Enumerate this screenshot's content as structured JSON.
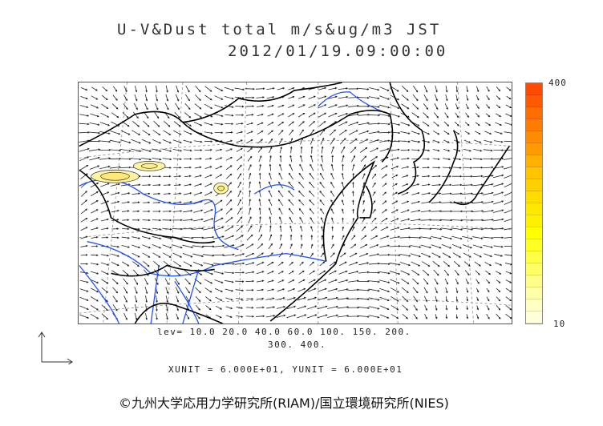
{
  "title": {
    "line1": "U-V&Dust total m/s&ug/m3 JST",
    "line2": "2012/01/19.09:00:00"
  },
  "colorbar": {
    "max_label": "400",
    "min_label": "10",
    "colors": [
      "#ff4a00",
      "#ff5a00",
      "#ff6c00",
      "#ff7c00",
      "#ff8c00",
      "#ff9a00",
      "#ffb000",
      "#ffc400",
      "#ffd000",
      "#ffdc00",
      "#ffe800",
      "#fff000",
      "#ffff00",
      "#ffff22",
      "#ffff44",
      "#ffff66",
      "#ffff88",
      "#ffffaa",
      "#ffffc4",
      "#ffffdc"
    ]
  },
  "contour_levels": {
    "line1": "lev= 10.0 20.0 40.0 60.0 100. 150. 200.",
    "line2": "300. 400."
  },
  "units": "XUNIT = 6.000E+01, YUNIT = 6.000E+01",
  "copyright": "©九州大学応用力学研究所(RIAM)/国立環境研究所(NIES)"
}
